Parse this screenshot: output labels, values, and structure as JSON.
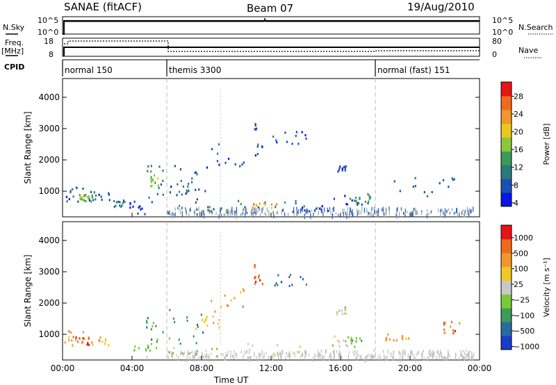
{
  "header": {
    "title": "SANAE (fitACF)",
    "beam": "Beam 07",
    "date": "19/Aug/2010"
  },
  "noise_panel": {
    "left_label": "N.Sky",
    "right_label": "N.Search",
    "ticks_left": [
      "10^5",
      "10^0"
    ],
    "ticks_right": [
      "10^5",
      "10^0"
    ]
  },
  "freq_panel": {
    "left_label_1": "Freq.",
    "left_label_2": "[MHz]",
    "right_label": "Nave",
    "ticks_left": [
      "18",
      "8"
    ],
    "ticks_right": [
      "80",
      "0"
    ]
  },
  "cpid_panel": {
    "label": "CPID",
    "segments": [
      {
        "name": "normal 150",
        "start_hour": 0
      },
      {
        "name": "themis 3300",
        "start_hour": 6
      },
      {
        "name": "normal (fast) 151",
        "start_hour": 18
      }
    ]
  },
  "colors": {
    "power_scale": [
      "#0a14e6",
      "#1a50b4",
      "#2a7a7a",
      "#3c9a5a",
      "#8cc63c",
      "#e8c81e",
      "#f0962d",
      "#f06a1e",
      "#e61414"
    ],
    "velocity_scale": [
      "#1a3cc8",
      "#2a6aa0",
      "#3c9a5a",
      "#7ac83c",
      "#c8c8c8",
      "#f0c828",
      "#f0962d",
      "#f06a1e",
      "#e61414"
    ],
    "ground_scatter": "#bcbcbc"
  },
  "chart_data": [
    {
      "type": "heatmap",
      "title": "Power",
      "xlabel": "",
      "ylabel": "Slant Range [km]",
      "xlim_hours": [
        0,
        24
      ],
      "ylim_km": [
        180,
        4600
      ],
      "x_ticks": [
        "00:00",
        "04:00",
        "08:00",
        "12:00",
        "16:00",
        "20:00",
        "00:00"
      ],
      "y_ticks": [
        "1000",
        "2000",
        "3000",
        "4000"
      ],
      "colorbar": {
        "label": "Power [dB]",
        "ticks": [
          "28",
          "24",
          "20",
          "16",
          "12",
          "8",
          "4"
        ],
        "range": [
          0,
          30
        ]
      },
      "patches": [
        {
          "t0": 0.1,
          "t1": 1.2,
          "r0": 620,
          "r1": 1120,
          "lvl": 1
        },
        {
          "t0": 0.8,
          "t1": 1.7,
          "r0": 650,
          "r1": 900,
          "lvl": 3
        },
        {
          "t0": 1.0,
          "t1": 1.5,
          "r0": 720,
          "r1": 850,
          "lvl": 4
        },
        {
          "t0": 1.5,
          "t1": 2.7,
          "r0": 600,
          "r1": 1000,
          "lvl": 1
        },
        {
          "t0": 2.9,
          "t1": 3.6,
          "r0": 480,
          "r1": 700,
          "lvl": 2
        },
        {
          "t0": 3.8,
          "t1": 5.2,
          "r0": 250,
          "r1": 700,
          "lvl": 1
        },
        {
          "t0": 4.8,
          "t1": 5.8,
          "r0": 750,
          "r1": 1800,
          "lvl": 2
        },
        {
          "t0": 5.0,
          "t1": 5.5,
          "r0": 1100,
          "r1": 1500,
          "lvl": 4
        },
        {
          "t0": 6.0,
          "t1": 9.5,
          "r0": 240,
          "r1": 520,
          "lvl": 2
        },
        {
          "t0": 6.0,
          "t1": 8.2,
          "r0": 600,
          "r1": 1800,
          "lvl": 1
        },
        {
          "t0": 6.5,
          "t1": 7.5,
          "r0": 800,
          "r1": 1400,
          "lvl": 2
        },
        {
          "t0": 8.0,
          "t1": 10.5,
          "r0": 1600,
          "r1": 2500,
          "lvl": 1
        },
        {
          "t0": 11.0,
          "t1": 11.5,
          "r0": 2000,
          "r1": 3300,
          "lvl": 1
        },
        {
          "t0": 12.0,
          "t1": 14.0,
          "r0": 2500,
          "r1": 2900,
          "lvl": 1
        },
        {
          "t0": 10.0,
          "t1": 13.5,
          "r0": 300,
          "r1": 700,
          "lvl": 2
        },
        {
          "t0": 10.9,
          "t1": 12.4,
          "r0": 380,
          "r1": 600,
          "lvl": 6
        },
        {
          "t0": 12.0,
          "t1": 15.5,
          "r0": 320,
          "r1": 520,
          "lvl": 1
        },
        {
          "t0": 15.5,
          "t1": 17.8,
          "r0": 550,
          "r1": 950,
          "lvl": 1
        },
        {
          "t0": 16.5,
          "t1": 17.7,
          "r0": 600,
          "r1": 850,
          "lvl": 3
        },
        {
          "t0": 15.8,
          "t1": 16.3,
          "r0": 1600,
          "r1": 1800,
          "lvl": 1
        },
        {
          "t0": 19.0,
          "t1": 22.8,
          "r0": 800,
          "r1": 1500,
          "lvl": 1
        }
      ]
    },
    {
      "type": "heatmap",
      "title": "Velocity",
      "xlabel": "Time UT",
      "ylabel": "Slant Range [km]",
      "xlim_hours": [
        0,
        24
      ],
      "ylim_km": [
        180,
        4600
      ],
      "x_ticks": [
        "00:00",
        "04:00",
        "08:00",
        "12:00",
        "16:00",
        "20:00",
        "00:00"
      ],
      "y_ticks": [
        "1000",
        "2000",
        "3000",
        "4000"
      ],
      "colorbar": {
        "label": "Velocity [m s⁻¹]",
        "ticks": [
          "1000",
          "500",
          "100",
          "25",
          "−25",
          "−100",
          "−500",
          "−1000"
        ],
        "range": [
          -1200,
          1200
        ]
      },
      "patches": [
        {
          "t0": 0.1,
          "t1": 1.3,
          "r0": 620,
          "r1": 1100,
          "lvl": 6
        },
        {
          "t0": 0.6,
          "t1": 1.5,
          "r0": 650,
          "r1": 900,
          "lvl": 7
        },
        {
          "t0": 1.5,
          "t1": 2.6,
          "r0": 600,
          "r1": 900,
          "lvl": 5
        },
        {
          "t0": 3.8,
          "t1": 5.4,
          "r0": 250,
          "r1": 800,
          "lvl": 3
        },
        {
          "t0": 4.8,
          "t1": 5.8,
          "r0": 750,
          "r1": 1800,
          "lvl": 2
        },
        {
          "t0": 6.0,
          "t1": 9.5,
          "r0": 260,
          "r1": 560,
          "lvl": 3
        },
        {
          "t0": 6.0,
          "t1": 8.2,
          "r0": 600,
          "r1": 1800,
          "lvl": 2
        },
        {
          "t0": 7.5,
          "t1": 9.0,
          "r0": 1000,
          "r1": 1600,
          "lvl": 5
        },
        {
          "t0": 8.5,
          "t1": 10.5,
          "r0": 1700,
          "r1": 2500,
          "lvl": 6
        },
        {
          "t0": 11.0,
          "t1": 11.5,
          "r0": 2600,
          "r1": 3300,
          "lvl": 7
        },
        {
          "t0": 12.0,
          "t1": 14.0,
          "r0": 2500,
          "r1": 2900,
          "lvl": 1
        },
        {
          "t0": 10.0,
          "t1": 14.0,
          "r0": 300,
          "r1": 700,
          "lvl": 4
        },
        {
          "t0": 15.5,
          "t1": 17.8,
          "r0": 550,
          "r1": 950,
          "lvl": 4
        },
        {
          "t0": 16.2,
          "t1": 17.2,
          "r0": 700,
          "r1": 900,
          "lvl": 3
        },
        {
          "t0": 15.7,
          "t1": 16.3,
          "r0": 1600,
          "r1": 1850,
          "lvl": 4
        },
        {
          "t0": 18.5,
          "t1": 20.0,
          "r0": 700,
          "r1": 1000,
          "lvl": 6
        },
        {
          "t0": 21.5,
          "t1": 22.9,
          "r0": 1000,
          "r1": 1400,
          "lvl": 7
        }
      ]
    }
  ]
}
